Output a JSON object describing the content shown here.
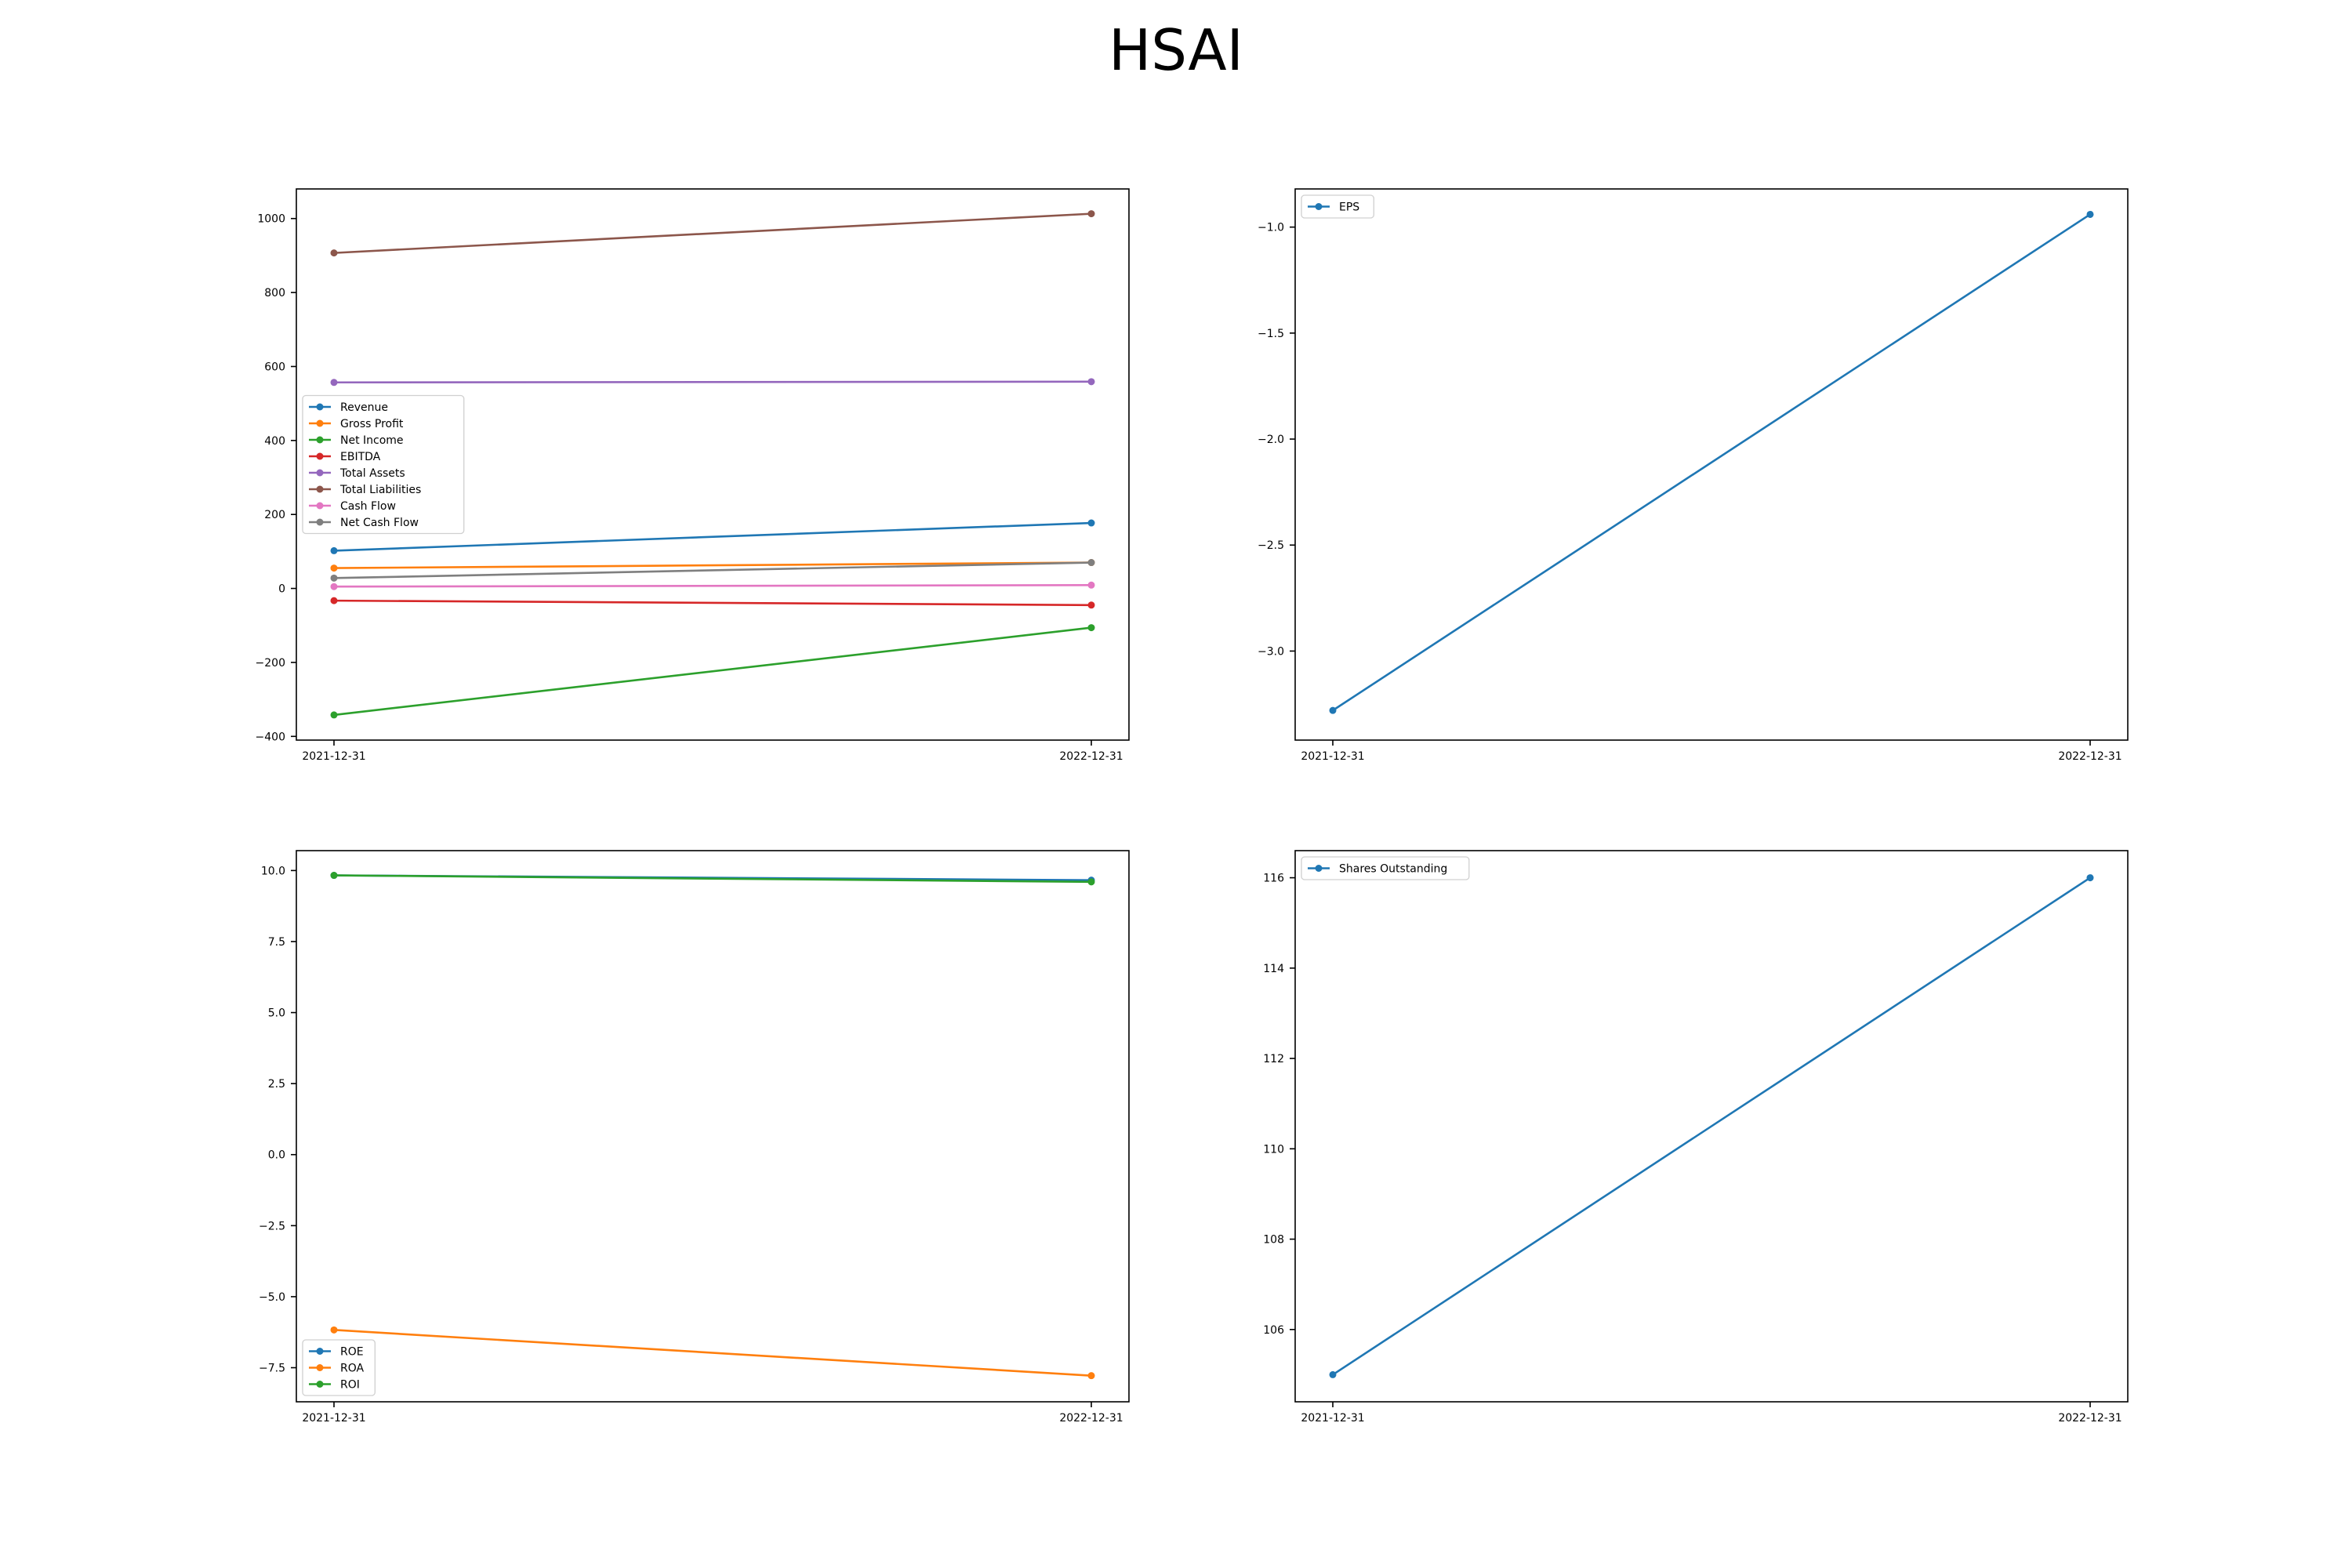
{
  "figure": {
    "title": "HSAI"
  },
  "chart_data": [
    {
      "type": "line",
      "categories": [
        "2021-12-31",
        "2022-12-31"
      ],
      "ylim": [
        -410,
        1080
      ],
      "yticks": [
        -400,
        -200,
        0,
        200,
        400,
        600,
        800,
        1000
      ],
      "grid": false,
      "legend_position": "center-left",
      "series": [
        {
          "name": "Revenue",
          "values": [
            102,
            177
          ],
          "color": "#1f77b4"
        },
        {
          "name": "Gross Profit",
          "values": [
            55,
            70
          ],
          "color": "#ff7f0e"
        },
        {
          "name": "Net Income",
          "values": [
            -342,
            -106
          ],
          "color": "#2ca02c"
        },
        {
          "name": "EBITDA",
          "values": [
            -33,
            -45
          ],
          "color": "#d62728"
        },
        {
          "name": "Total Assets",
          "values": [
            557,
            559
          ],
          "color": "#9467bd"
        },
        {
          "name": "Total Liabilities",
          "values": [
            907,
            1013
          ],
          "color": "#8c564b"
        },
        {
          "name": "Cash Flow",
          "values": [
            5,
            9
          ],
          "color": "#e377c2"
        },
        {
          "name": "Net Cash Flow",
          "values": [
            28,
            70
          ],
          "color": "#7f7f7f"
        }
      ]
    },
    {
      "type": "line",
      "categories": [
        "2021-12-31",
        "2022-12-31"
      ],
      "ylim": [
        -3.42,
        -0.82
      ],
      "yticks": [
        -3.0,
        -2.5,
        -2.0,
        -1.5,
        -1.0
      ],
      "grid": false,
      "legend_position": "top-left",
      "series": [
        {
          "name": "EPS",
          "values": [
            -3.28,
            -0.94
          ],
          "color": "#1f77b4"
        }
      ]
    },
    {
      "type": "line",
      "categories": [
        "2021-12-31",
        "2022-12-31"
      ],
      "ylim": [
        -8.7,
        10.7
      ],
      "yticks": [
        -7.5,
        -5.0,
        -2.5,
        0.0,
        2.5,
        5.0,
        7.5,
        10.0
      ],
      "grid": false,
      "legend_position": "bottom-left",
      "series": [
        {
          "name": "ROE",
          "values": [
            9.83,
            9.66
          ],
          "color": "#1f77b4"
        },
        {
          "name": "ROA",
          "values": [
            -6.17,
            -7.78
          ],
          "color": "#ff7f0e"
        },
        {
          "name": "ROI",
          "values": [
            9.83,
            9.6
          ],
          "color": "#2ca02c"
        }
      ]
    },
    {
      "type": "line",
      "categories": [
        "2021-12-31",
        "2022-12-31"
      ],
      "ylim": [
        104.4,
        116.6
      ],
      "yticks": [
        106,
        108,
        110,
        112,
        114,
        116
      ],
      "grid": false,
      "legend_position": "top-left",
      "series": [
        {
          "name": "Shares Outstanding",
          "values": [
            105,
            116
          ],
          "color": "#1f77b4"
        }
      ]
    }
  ]
}
